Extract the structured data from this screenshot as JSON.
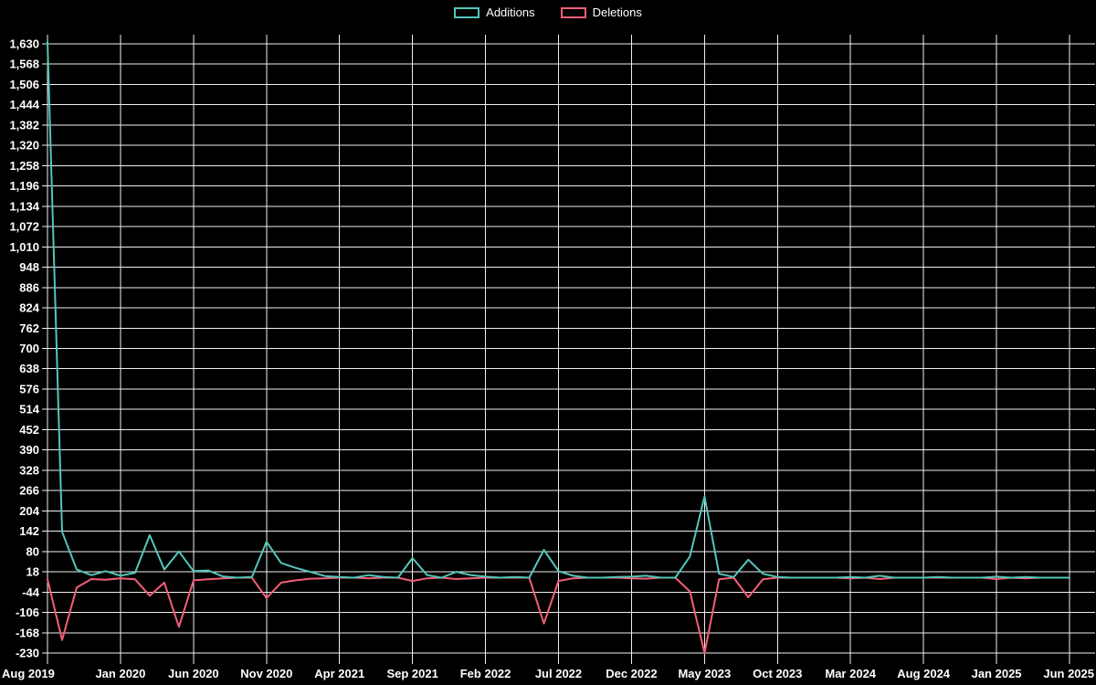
{
  "page": {
    "background_color": "#000000",
    "text_color": "#ffffff",
    "grid_color": "#efefef"
  },
  "legend": {
    "items": [
      {
        "label": "Additions",
        "color": "#53c6ba"
      },
      {
        "label": "Deletions",
        "color": "#f25f77"
      }
    ]
  },
  "chart_data": {
    "type": "line",
    "title": "",
    "xlabel": "",
    "ylabel": "",
    "grid": true,
    "legend_position": "top-center",
    "ylim": [
      -230,
      1630
    ],
    "y_tick_step": 62,
    "y_ticks": [
      1630,
      1568,
      1506,
      1444,
      1382,
      1320,
      1258,
      1196,
      1134,
      1072,
      1010,
      948,
      886,
      824,
      762,
      700,
      638,
      576,
      514,
      452,
      390,
      328,
      266,
      204,
      142,
      80,
      18,
      -44,
      -106,
      -168,
      -230
    ],
    "x_tick_labels": [
      "Aug 2019",
      "Jan 2020",
      "Jun 2020",
      "Nov 2020",
      "Apr 2021",
      "Sep 2021",
      "Feb 2022",
      "Jul 2022",
      "Dec 2022",
      "May 2023",
      "Oct 2023",
      "Mar 2024",
      "Aug 2024",
      "Jan 2025",
      "Jun 2025"
    ],
    "x_tick_interval_months": 5,
    "x_start": "Aug 2019",
    "x_end": "Jun 2025",
    "points_per_series": 71,
    "series": [
      {
        "name": "Additions",
        "color": "#53c6ba",
        "values": [
          1637,
          140,
          25,
          8,
          20,
          6,
          15,
          130,
          25,
          80,
          20,
          22,
          4,
          0,
          2,
          110,
          45,
          30,
          18,
          5,
          2,
          0,
          8,
          2,
          0,
          60,
          8,
          0,
          18,
          8,
          3,
          0,
          2,
          0,
          85,
          20,
          6,
          0,
          0,
          2,
          3,
          6,
          0,
          0,
          65,
          248,
          12,
          2,
          55,
          12,
          2,
          0,
          0,
          0,
          0,
          2,
          0,
          6,
          0,
          0,
          0,
          2,
          0,
          0,
          0,
          3,
          0,
          2,
          0,
          0,
          0
        ]
      },
      {
        "name": "Deletions",
        "color": "#f25f77",
        "values": [
          -5,
          -190,
          -30,
          -4,
          -6,
          -2,
          -5,
          -55,
          -15,
          -150,
          -8,
          -5,
          -2,
          0,
          0,
          -62,
          -15,
          -8,
          -3,
          -2,
          0,
          0,
          -2,
          0,
          0,
          -10,
          -2,
          0,
          -4,
          -2,
          0,
          0,
          0,
          0,
          -140,
          -10,
          -2,
          0,
          0,
          0,
          -2,
          -3,
          0,
          0,
          -42,
          -230,
          -5,
          0,
          -60,
          -5,
          0,
          0,
          0,
          0,
          0,
          -2,
          0,
          -4,
          0,
          0,
          0,
          0,
          0,
          0,
          0,
          -4,
          0,
          -2,
          0,
          0,
          0
        ]
      }
    ]
  }
}
